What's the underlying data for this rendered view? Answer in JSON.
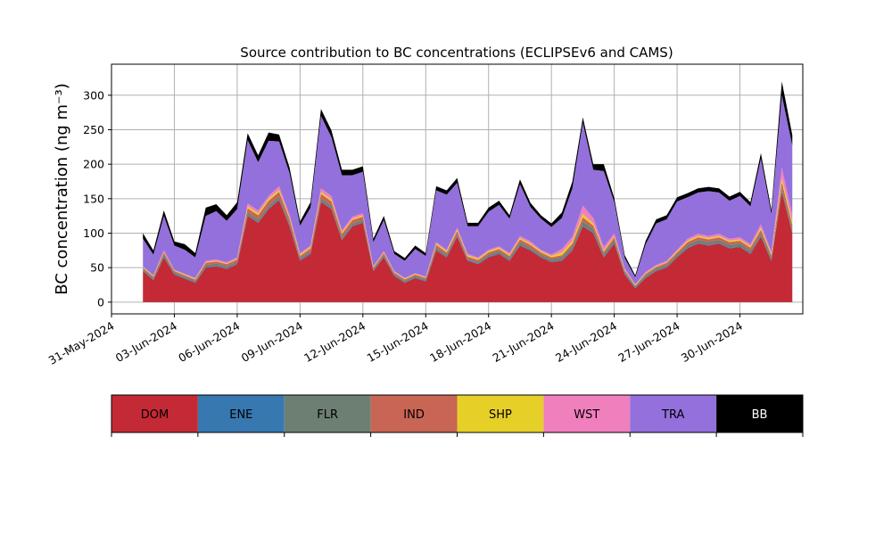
{
  "chart_data": {
    "type": "area",
    "title": "Source contribution to BC concentrations (ECLIPSEv6 and CAMS)",
    "ylabel": "BC concentration (ng m⁻³)",
    "xlabel": "",
    "ylim": [
      -17,
      345
    ],
    "xlim_days": [
      "2024-05-31T00:00",
      "2024-07-03T00:00"
    ],
    "yticks": [
      0,
      50,
      100,
      150,
      200,
      250,
      300
    ],
    "xticks": [
      "31-May-2024",
      "03-Jun-2024",
      "06-Jun-2024",
      "09-Jun-2024",
      "12-Jun-2024",
      "15-Jun-2024",
      "18-Jun-2024",
      "21-Jun-2024",
      "24-Jun-2024",
      "27-Jun-2024",
      "30-Jun-2024"
    ],
    "xtick_dates": [
      "2024-05-31",
      "2024-06-03",
      "2024-06-06",
      "2024-06-09",
      "2024-06-12",
      "2024-06-15",
      "2024-06-18",
      "2024-06-21",
      "2024-06-24",
      "2024-06-27",
      "2024-06-30"
    ],
    "grid": true,
    "legend_position": "bottom",
    "stacked": true,
    "x": [
      "2024-06-01T12:00",
      "2024-06-02T00:00",
      "2024-06-02T12:00",
      "2024-06-03T00:00",
      "2024-06-03T12:00",
      "2024-06-04T00:00",
      "2024-06-04T12:00",
      "2024-06-05T00:00",
      "2024-06-05T12:00",
      "2024-06-06T00:00",
      "2024-06-06T12:00",
      "2024-06-07T00:00",
      "2024-06-07T12:00",
      "2024-06-08T00:00",
      "2024-06-08T12:00",
      "2024-06-09T00:00",
      "2024-06-09T12:00",
      "2024-06-10T00:00",
      "2024-06-10T12:00",
      "2024-06-11T00:00",
      "2024-06-11T12:00",
      "2024-06-12T00:00",
      "2024-06-12T12:00",
      "2024-06-13T00:00",
      "2024-06-13T12:00",
      "2024-06-14T00:00",
      "2024-06-14T12:00",
      "2024-06-15T00:00",
      "2024-06-15T12:00",
      "2024-06-16T00:00",
      "2024-06-16T12:00",
      "2024-06-17T00:00",
      "2024-06-17T12:00",
      "2024-06-18T00:00",
      "2024-06-18T12:00",
      "2024-06-19T00:00",
      "2024-06-19T12:00",
      "2024-06-20T00:00",
      "2024-06-20T12:00",
      "2024-06-21T00:00",
      "2024-06-21T12:00",
      "2024-06-22T00:00",
      "2024-06-22T12:00",
      "2024-06-23T00:00",
      "2024-06-23T12:00",
      "2024-06-24T00:00",
      "2024-06-24T12:00",
      "2024-06-25T00:00",
      "2024-06-25T12:00",
      "2024-06-26T00:00",
      "2024-06-26T12:00",
      "2024-06-27T00:00",
      "2024-06-27T12:00",
      "2024-06-28T00:00",
      "2024-06-28T12:00",
      "2024-06-29T00:00",
      "2024-06-29T12:00",
      "2024-06-30T00:00",
      "2024-06-30T12:00",
      "2024-07-01T00:00",
      "2024-07-01T12:00",
      "2024-07-02T00:00",
      "2024-07-02T12:00"
    ],
    "series": [
      {
        "name": "DOM",
        "color": "#c42a35",
        "values": [
          45,
          32,
          65,
          40,
          34,
          28,
          50,
          52,
          48,
          55,
          125,
          115,
          135,
          148,
          110,
          60,
          70,
          145,
          135,
          90,
          110,
          115,
          45,
          65,
          38,
          28,
          35,
          30,
          75,
          65,
          95,
          60,
          55,
          65,
          70,
          60,
          82,
          75,
          65,
          58,
          60,
          75,
          110,
          100,
          65,
          85,
          40,
          20,
          35,
          45,
          50,
          65,
          78,
          85,
          82,
          85,
          78,
          80,
          70,
          95,
          60,
          160,
          100
        ]
      },
      {
        "name": "ENE",
        "color": "#3778b0",
        "values": [
          1,
          1,
          1,
          1,
          1,
          1,
          1,
          1,
          1,
          1,
          1,
          1,
          1,
          1,
          1,
          1,
          1,
          1,
          1,
          1,
          1,
          1,
          1,
          1,
          1,
          1,
          1,
          1,
          1,
          1,
          1,
          1,
          1,
          1,
          1,
          1,
          1,
          1,
          1,
          1,
          1,
          1,
          1,
          1,
          1,
          1,
          1,
          1,
          1,
          1,
          1,
          1,
          1,
          1,
          1,
          1,
          1,
          1,
          1,
          1,
          1,
          1,
          1
        ]
      },
      {
        "name": "FLR",
        "color": "#6d7f73",
        "values": [
          2,
          2,
          3,
          2,
          2,
          2,
          3,
          3,
          3,
          3,
          4,
          4,
          4,
          4,
          4,
          3,
          3,
          4,
          4,
          3,
          3,
          3,
          2,
          2,
          2,
          2,
          2,
          2,
          3,
          3,
          3,
          2,
          2,
          3,
          3,
          3,
          4,
          3,
          3,
          3,
          4,
          5,
          6,
          5,
          4,
          4,
          3,
          2,
          3,
          3,
          3,
          3,
          4,
          4,
          4,
          4,
          4,
          4,
          4,
          4,
          4,
          5,
          5
        ]
      },
      {
        "name": "IND",
        "color": "#c86554",
        "values": [
          2,
          2,
          3,
          2,
          2,
          2,
          3,
          3,
          3,
          3,
          6,
          6,
          7,
          7,
          6,
          3,
          4,
          7,
          6,
          5,
          5,
          5,
          2,
          3,
          2,
          2,
          2,
          2,
          4,
          3,
          4,
          3,
          3,
          3,
          3,
          3,
          4,
          4,
          3,
          3,
          3,
          4,
          6,
          5,
          3,
          4,
          2,
          1,
          2,
          2,
          3,
          3,
          4,
          4,
          4,
          4,
          4,
          4,
          4,
          5,
          3,
          8,
          6
        ]
      },
      {
        "name": "SHP",
        "color": "#e6d028",
        "values": [
          1,
          1,
          1,
          1,
          1,
          1,
          1,
          1,
          1,
          1,
          3,
          3,
          3,
          3,
          2,
          2,
          2,
          3,
          3,
          2,
          2,
          2,
          1,
          1,
          1,
          1,
          1,
          1,
          2,
          2,
          2,
          2,
          2,
          2,
          2,
          2,
          2,
          2,
          2,
          2,
          4,
          4,
          5,
          3,
          2,
          2,
          1,
          1,
          1,
          1,
          1,
          2,
          2,
          2,
          2,
          2,
          2,
          2,
          2,
          3,
          2,
          6,
          5
        ]
      },
      {
        "name": "WST",
        "color": "#f07fbe",
        "values": [
          1,
          1,
          2,
          1,
          1,
          1,
          2,
          2,
          2,
          2,
          4,
          4,
          4,
          5,
          4,
          2,
          2,
          5,
          5,
          3,
          3,
          3,
          1,
          2,
          1,
          1,
          1,
          1,
          2,
          2,
          3,
          2,
          2,
          2,
          2,
          2,
          3,
          3,
          2,
          2,
          5,
          6,
          12,
          8,
          5,
          4,
          2,
          1,
          2,
          2,
          2,
          2,
          3,
          3,
          3,
          3,
          3,
          3,
          3,
          5,
          3,
          15,
          10
        ]
      },
      {
        "name": "TRA",
        "color": "#9370db",
        "values": [
          40,
          30,
          50,
          35,
          35,
          30,
          65,
          70,
          60,
          70,
          92,
          70,
          80,
          65,
          60,
          40,
          55,
          105,
          85,
          80,
          60,
          60,
          35,
          45,
          25,
          25,
          35,
          30,
          75,
          80,
          65,
          40,
          45,
          55,
          60,
          50,
          75,
          50,
          45,
          40,
          45,
          70,
          120,
          70,
          110,
          45,
          15,
          10,
          40,
          60,
          60,
          70,
          60,
          60,
          65,
          60,
          55,
          60,
          55,
          95,
          55,
          105,
          100
        ]
      },
      {
        "name": "BB",
        "color": "#000000",
        "values": [
          8,
          6,
          8,
          6,
          8,
          6,
          12,
          10,
          8,
          10,
          10,
          10,
          12,
          10,
          8,
          6,
          8,
          10,
          10,
          8,
          8,
          8,
          5,
          6,
          4,
          4,
          5,
          4,
          6,
          6,
          7,
          5,
          5,
          6,
          6,
          5,
          7,
          6,
          5,
          5,
          8,
          10,
          8,
          8,
          10,
          6,
          4,
          3,
          5,
          6,
          6,
          6,
          6,
          6,
          6,
          6,
          6,
          6,
          6,
          8,
          6,
          20,
          15
        ]
      }
    ]
  }
}
